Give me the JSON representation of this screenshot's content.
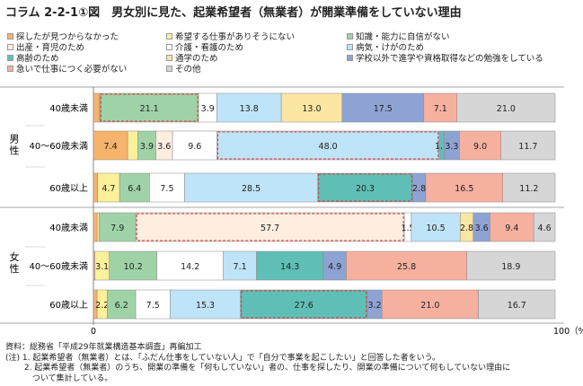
{
  "title": "コラム 2-2-1①図　男女別に見た、起業希望者（無業者）が開業準備をしていない理由",
  "legend": [
    {
      "name": "探したが見つからなかった",
      "color": "#f6b36b"
    },
    {
      "name": "希望する仕事がありそうにない",
      "color": "#fdf09a"
    },
    {
      "name": "知識・能力に自信がない",
      "color": "#9fd3a7"
    },
    {
      "name": "出産・育児のため",
      "color": "#fdeee0"
    },
    {
      "name": "介護・看護のため",
      "color": "#ffffff"
    },
    {
      "name": "病気・けがのため",
      "color": "#bfe3f7"
    },
    {
      "name": "高齢のため",
      "color": "#5fbfb7"
    },
    {
      "name": "通学のため",
      "color": "#fbe6a2"
    },
    {
      "name": "学校以外で進学や資格取得などの勉強をしている",
      "color": "#8ea3d4"
    },
    {
      "name": "急いで仕事につく必要がない",
      "color": "#f6b0a0"
    },
    {
      "name": "その他",
      "color": "#d6d6d6"
    }
  ],
  "groups": [
    {
      "label": "男性",
      "rows": [
        0,
        1,
        2
      ]
    },
    {
      "label": "女性",
      "rows": [
        3,
        4,
        5
      ]
    }
  ],
  "chart_data": {
    "type": "bar",
    "orientation": "horizontal",
    "stacked": true,
    "percent": true,
    "categories": [
      "40歳未満",
      "40～60歳未満",
      "60歳以上",
      "40歳未満",
      "40～60歳未満",
      "60歳以上"
    ],
    "series": [
      {
        "name": "探したが見つからなかった",
        "values": [
          1.3,
          7.4,
          0.9,
          0.8,
          0.3,
          0.8
        ],
        "labels": [
          "",
          "7.4",
          "",
          "",
          "",
          ""
        ]
      },
      {
        "name": "希望する仕事がありそうにない",
        "values": [
          0.1,
          2.2,
          4.7,
          0.4,
          3.1,
          2.2
        ],
        "labels": [
          "",
          "",
          "4.7",
          "",
          "3.1",
          "2.2"
        ]
      },
      {
        "name": "知識・能力に自信がない",
        "values": [
          21.1,
          3.9,
          6.4,
          7.9,
          10.2,
          6.2
        ],
        "labels": [
          "21.1",
          "3.9",
          "6.4",
          "7.9",
          "10.2",
          "6.2"
        ]
      },
      {
        "name": "出産・育児のため",
        "values": [
          0,
          3.6,
          0,
          57.7,
          0,
          0
        ],
        "labels": [
          "",
          "3.6",
          "",
          "57.7",
          "",
          ""
        ]
      },
      {
        "name": "介護・看護のため",
        "values": [
          3.9,
          9.6,
          7.5,
          1.5,
          14.2,
          7.5
        ],
        "labels": [
          "3.9",
          "9.6",
          "7.5",
          "1.5",
          "14.2",
          "7.5"
        ]
      },
      {
        "name": "病気・けがのため",
        "values": [
          13.8,
          48.0,
          28.5,
          10.5,
          7.1,
          15.3
        ],
        "labels": [
          "13.8",
          "48.0",
          "28.5",
          "10.5",
          "7.1",
          "15.3"
        ]
      },
      {
        "name": "高齢のため",
        "values": [
          0,
          1.1,
          20.3,
          0,
          14.3,
          27.6
        ],
        "labels": [
          "",
          "1.1",
          "20.3",
          "",
          "14.3",
          "27.6"
        ]
      },
      {
        "name": "通学のため",
        "values": [
          13.0,
          0,
          0,
          2.8,
          0,
          0
        ],
        "labels": [
          "13.0",
          "",
          "",
          "2.8",
          "",
          ""
        ]
      },
      {
        "name": "学校以外で進学や資格取得などの勉強をしている",
        "values": [
          17.5,
          3.3,
          2.8,
          3.6,
          4.9,
          3.2
        ],
        "labels": [
          "17.5",
          "3.3",
          "2.8",
          "3.6",
          "4.9",
          "3.2"
        ]
      },
      {
        "name": "急いで仕事につく必要がない",
        "values": [
          7.1,
          9.0,
          16.5,
          9.4,
          25.8,
          21.0
        ],
        "labels": [
          "7.1",
          "9.0",
          "16.5",
          "9.4",
          "25.8",
          "21.0"
        ]
      },
      {
        "name": "その他",
        "values": [
          21.0,
          11.7,
          11.2,
          4.6,
          18.9,
          16.7
        ],
        "labels": [
          "21.0",
          "11.7",
          "11.2",
          "4.6",
          "18.9",
          "16.7"
        ]
      }
    ],
    "highlights": [
      [
        2
      ],
      [
        5
      ],
      [
        6
      ],
      [
        3
      ],
      [],
      [
        6
      ]
    ],
    "xlim": [
      0,
      100
    ],
    "xticks": [
      "0",
      "100（%）"
    ]
  },
  "notes": [
    "資料：総務省「平成29年就業構造基本調査」再編加工",
    "(注) 1. 起業希望者（無業者）とは、「ふだん仕事をしていない人」で「自分で事業を起こしたい」と回答した者をいう。",
    "　　 2. 起業希望者（無業者）のうち、開業の準備を「何もしていない」者の、仕事を探したり、開業の準備について何もしていない理由に",
    "　　　 ついて集計している。"
  ]
}
